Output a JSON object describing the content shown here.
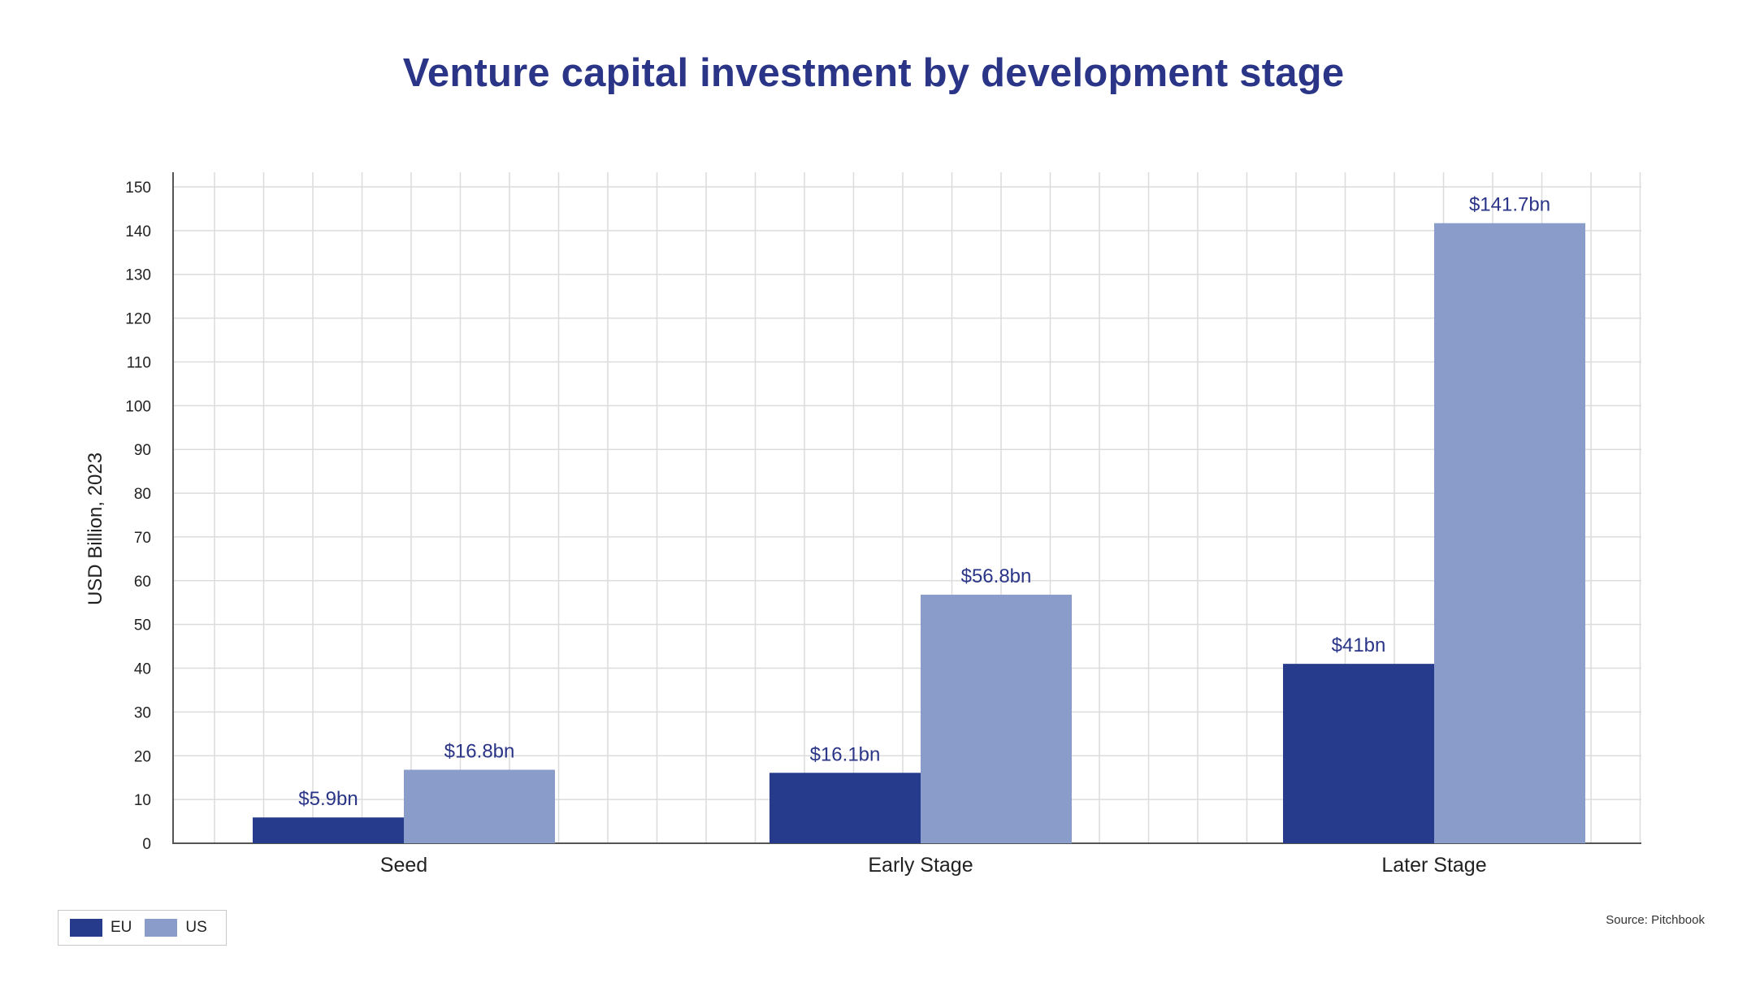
{
  "chart_data": {
    "type": "bar",
    "title": "Venture capital investment by development stage",
    "ylabel": "USD Billion, 2023",
    "xlabel": "",
    "categories": [
      "Seed",
      "Early Stage",
      "Later Stage"
    ],
    "series": [
      {
        "name": "EU",
        "color": "#263b8c",
        "values": [
          5.9,
          16.1,
          41
        ],
        "labels": [
          "$5.9bn",
          "$16.1bn",
          "$41bn"
        ]
      },
      {
        "name": "US",
        "color": "#8a9cc9",
        "values": [
          16.8,
          56.8,
          141.7
        ],
        "labels": [
          "$16.8bn",
          "$56.8bn",
          "$141.7bn"
        ]
      }
    ],
    "ylim": [
      0,
      150
    ],
    "yticks": [
      0,
      10,
      20,
      30,
      40,
      50,
      60,
      70,
      80,
      90,
      100,
      110,
      120,
      130,
      140,
      150
    ],
    "grid": true,
    "legend_position": "bottom-left",
    "source": "Source: Pitchbook"
  }
}
